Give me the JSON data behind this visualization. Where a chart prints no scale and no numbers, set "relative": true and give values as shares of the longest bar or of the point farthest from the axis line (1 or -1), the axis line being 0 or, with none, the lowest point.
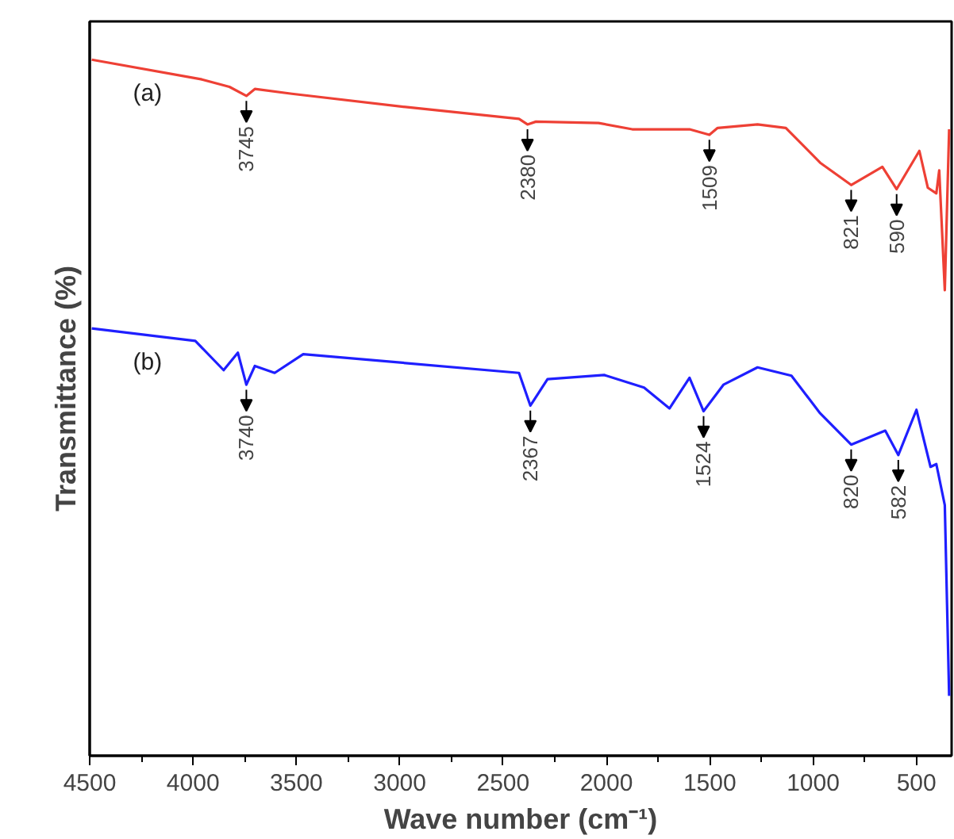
{
  "chart_data": {
    "type": "line",
    "relative": true,
    "xlabel": "Wave number (cm⁻¹)",
    "ylabel": "Transmittance (%)",
    "xlim": [
      4500,
      330
    ],
    "xticks": [
      4500,
      {
        "value": 4250,
        "label": null
      },
      4000,
      {
        "value": 3750,
        "label": null
      },
      3500,
      {
        "value": 3250,
        "label": null
      },
      3000,
      {
        "value": 2750,
        "label": null
      },
      2500,
      {
        "value": 2250,
        "label": null
      },
      2000,
      {
        "value": 1750,
        "label": null
      },
      1500,
      {
        "value": 1250,
        "label": null
      },
      1000,
      {
        "value": 750,
        "label": null
      },
      500
    ],
    "tick_labels": "x",
    "grid": false,
    "marker": "none",
    "line_style": "solid",
    "series": [
      {
        "name": "(a)",
        "color": "#ee4035",
        "x": [
          4490,
          3962,
          3824,
          3742,
          3701,
          3522,
          2972,
          2423,
          2382,
          2341,
          2038,
          1875,
          1598,
          1502,
          1462,
          1269,
          1132,
          966,
          816,
          665,
          596,
          486,
          445,
          404,
          390,
          363,
          342
        ],
        "values": [
          1.0,
          0.972,
          0.961,
          0.948,
          0.958,
          0.951,
          0.932,
          0.915,
          0.907,
          0.911,
          0.909,
          0.9,
          0.9,
          0.892,
          0.902,
          0.907,
          0.902,
          0.852,
          0.82,
          0.846,
          0.814,
          0.869,
          0.816,
          0.808,
          0.841,
          0.669,
          0.9
        ]
      },
      {
        "name": "(b)",
        "color": "#1f1fff",
        "x": [
          4490,
          3989,
          3852,
          3783,
          3742,
          3701,
          3605,
          3467,
          2423,
          2368,
          2285,
          2011,
          1818,
          1695,
          1598,
          1530,
          1434,
          1269,
          1105,
          966,
          816,
          651,
          588,
          500,
          432,
          404,
          363,
          342
        ],
        "values": [
          0.614,
          0.596,
          0.554,
          0.579,
          0.533,
          0.56,
          0.55,
          0.577,
          0.55,
          0.503,
          0.541,
          0.547,
          0.529,
          0.499,
          0.543,
          0.495,
          0.533,
          0.558,
          0.546,
          0.492,
          0.447,
          0.467,
          0.432,
          0.497,
          0.415,
          0.419,
          0.36,
          0.086
        ]
      }
    ],
    "annotations": [
      {
        "text": "3745",
        "x": 3742,
        "y": 0.948
      },
      {
        "text": "2380",
        "x": 2382,
        "y": 0.907
      },
      {
        "text": "1509",
        "x": 1502,
        "y": 0.892
      },
      {
        "text": "821",
        "x": 816,
        "y": 0.82
      },
      {
        "text": "590",
        "x": 596,
        "y": 0.814
      },
      {
        "text": "3740",
        "x": 3742,
        "y": 0.533
      },
      {
        "text": "2367",
        "x": 2368,
        "y": 0.503
      },
      {
        "text": "1524",
        "x": 1530,
        "y": 0.495
      },
      {
        "text": "820",
        "x": 816,
        "y": 0.447
      },
      {
        "text": "582",
        "x": 588,
        "y": 0.432
      }
    ]
  }
}
